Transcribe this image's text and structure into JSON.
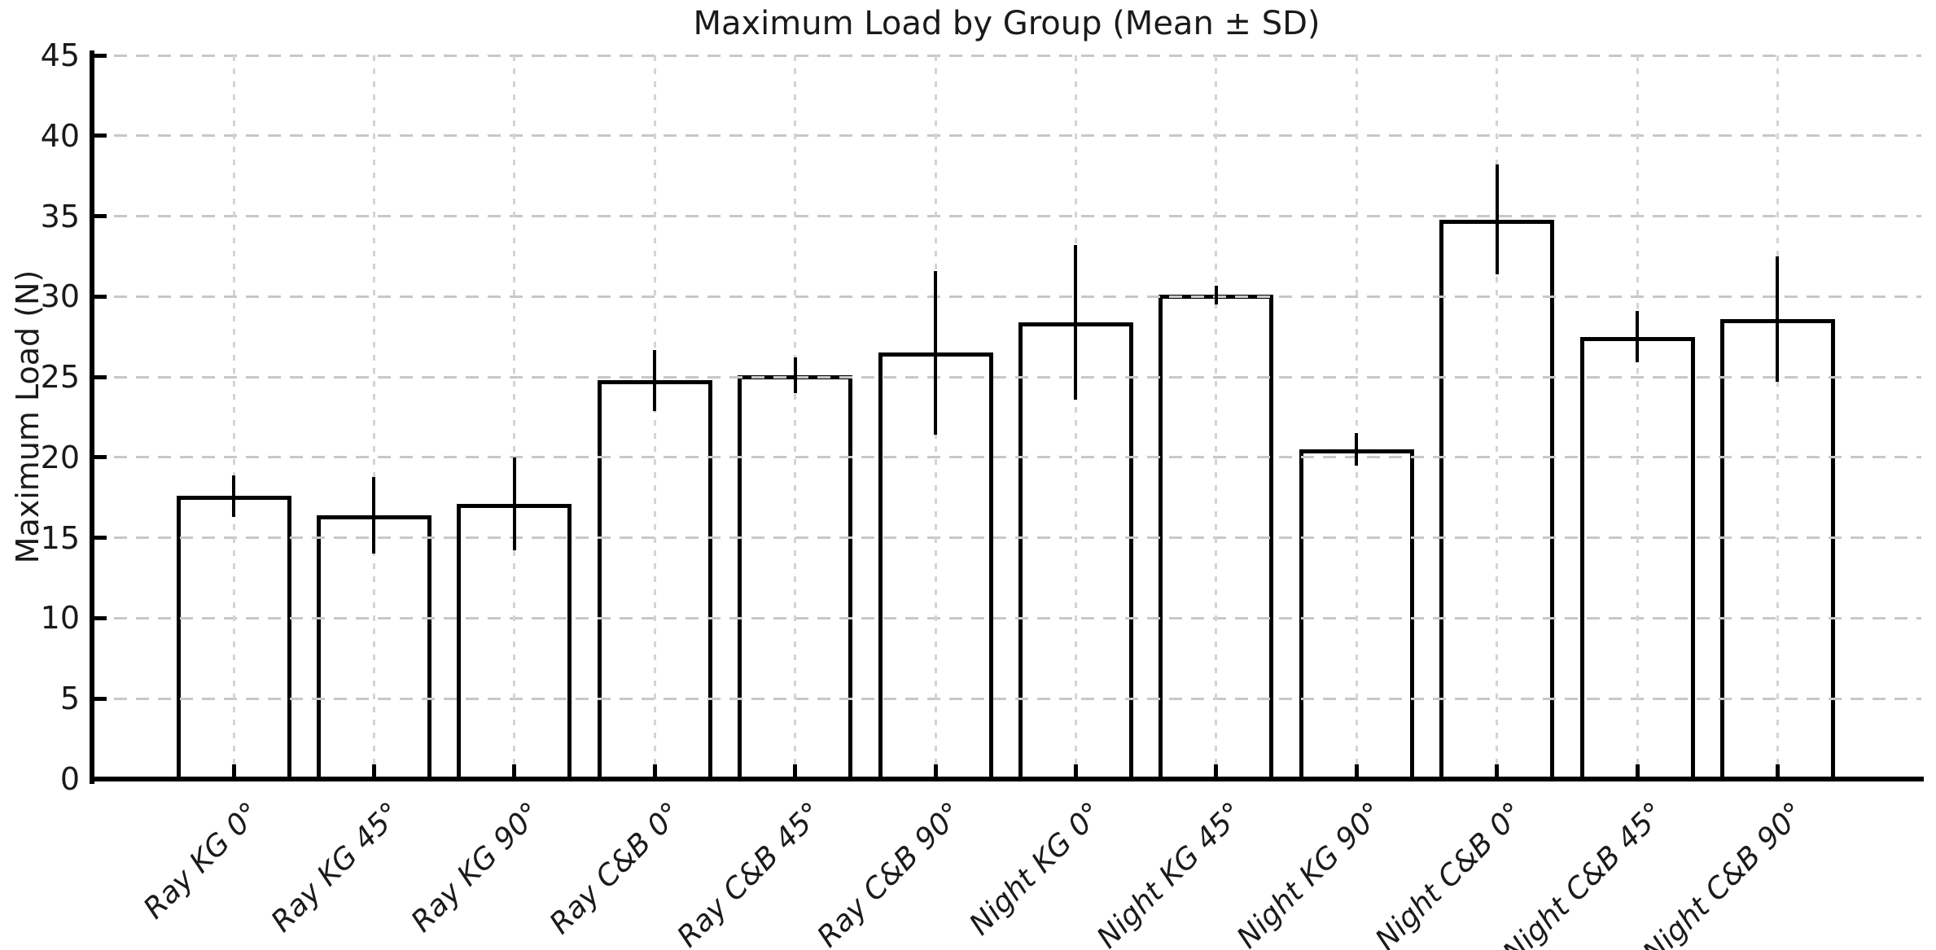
{
  "chart_data": {
    "type": "bar",
    "title": "Maximum Load by Group (Mean ± SD)",
    "ylabel": "Maximum Load (N)",
    "xlabel": "",
    "ylim": [
      0,
      45
    ],
    "yticks": [
      0,
      5,
      10,
      15,
      20,
      25,
      30,
      35,
      40,
      45
    ],
    "grid": true,
    "grid_style": "dashed light-gray, horizontal at each ytick and vertical at each category center, drawn above bars",
    "legend_position": "none",
    "categories": [
      "Ray KG 0°",
      "Ray KG 45°",
      "Ray KG 90°",
      "Ray C&B 0°",
      "Ray C&B 45°",
      "Ray C&B 90°",
      "Night KG 0°",
      "Night KG 45°",
      "Night KG 90°",
      "Night C&B 0°",
      "Night C&B 45°",
      "Night C&B 90°"
    ],
    "series": [
      {
        "name": "Mean maximum load (N)",
        "values": [
          17.6,
          16.4,
          17.1,
          24.8,
          25.1,
          26.5,
          28.4,
          30.1,
          20.5,
          34.8,
          27.5,
          28.6
        ]
      },
      {
        "name": "SD (error bar half-length, N)",
        "values": [
          1.3,
          2.4,
          2.9,
          1.9,
          1.1,
          5.1,
          4.8,
          0.6,
          1.0,
          3.4,
          1.6,
          3.9
        ]
      }
    ],
    "bar_fill": "#ffffff",
    "bar_edge": "#000000",
    "error_bar_style": "vertical black line, mean ± SD, no caps"
  },
  "style": {
    "background": "#ffffff",
    "text_color": "#1a1a1a",
    "grid_color": "#c8c8c8",
    "axis_color": "#000000"
  }
}
